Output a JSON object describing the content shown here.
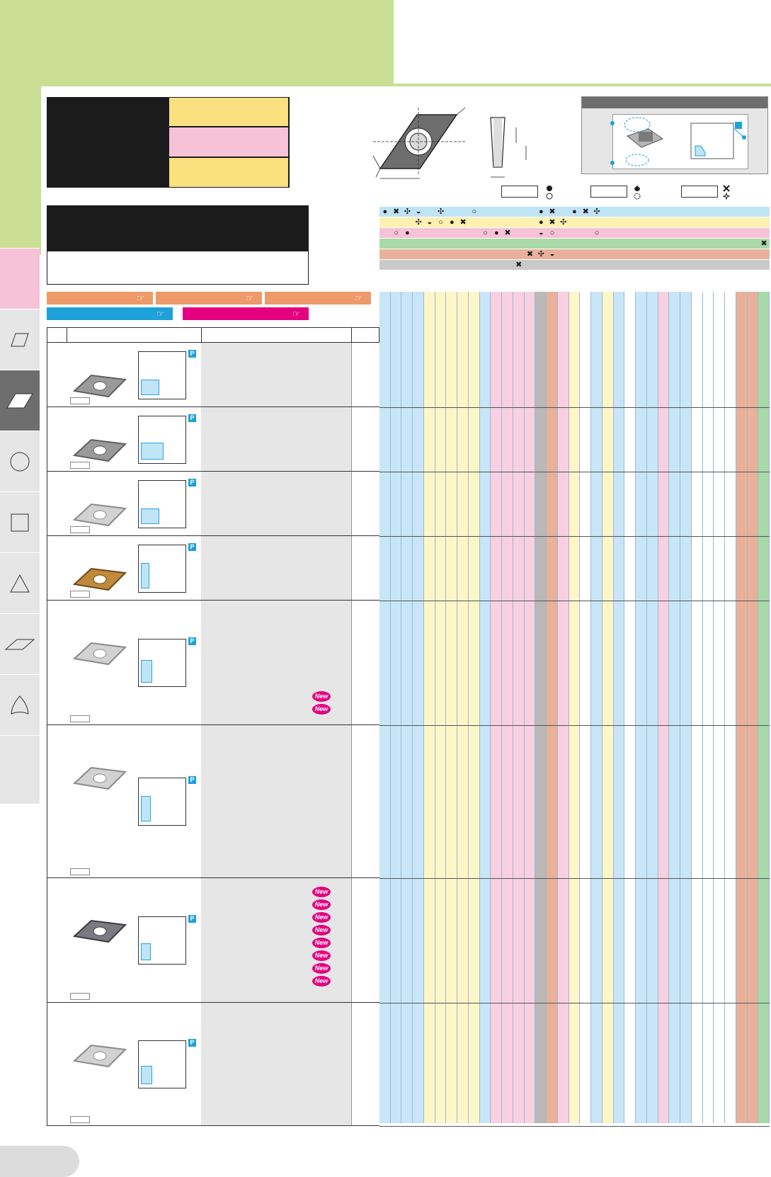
{
  "header": {
    "new_badge_text": "New",
    "p_badge_text": "P"
  },
  "colors": {
    "green": "#cadf94",
    "yellow": "#fbe080",
    "pink": "#f6c2d8",
    "blue": "#bfe4f5",
    "orange": "#ee9a6a",
    "cyan": "#1ea0d8",
    "magenta": "#e4007f"
  },
  "sidebar": {
    "tabs": [
      {
        "icon": "blank-tab-icon"
      },
      {
        "icon": "parallelogram-shape-icon"
      },
      {
        "icon": "rhombus-55-shape-icon"
      },
      {
        "icon": "circle-shape-icon"
      },
      {
        "icon": "square-shape-icon"
      },
      {
        "icon": "triangle-shape-icon"
      },
      {
        "icon": "rhombus-35-shape-icon"
      },
      {
        "icon": "trigon-shape-icon"
      }
    ]
  },
  "nav_pills": [
    {
      "color": "orange",
      "icon": "pointing-hand-icon"
    },
    {
      "color": "orange",
      "icon": "pointing-hand-icon"
    },
    {
      "color": "orange",
      "icon": "pointing-hand-icon"
    },
    {
      "color": "cyan",
      "icon": "pointing-hand-icon"
    },
    {
      "color": "magenta",
      "icon": "pointing-hand-icon"
    }
  ],
  "products": [
    {
      "image": "gray-rhombus-insert",
      "new_badges": 0
    },
    {
      "image": "gray-rhombus-insert",
      "new_badges": 0
    },
    {
      "image": "silver-rhombus-insert",
      "new_badges": 0
    },
    {
      "image": "gold-rhombus-insert",
      "new_badges": 0
    },
    {
      "image": "silver-rhombus-insert",
      "new_badges": 2
    },
    {
      "image": "silver-rhombus-insert",
      "new_badges": 0
    },
    {
      "image": "dark-rhombus-insert",
      "new_badges": 8
    },
    {
      "image": "silver-rhombus-insert",
      "new_badges": 0
    }
  ],
  "matrix_columns": [
    "blue",
    "blue",
    "blue",
    "blue",
    "yellow",
    "yellow",
    "yellow",
    "yellow",
    "yellow",
    "blue",
    "pink",
    "pink",
    "pink",
    "pink",
    "gray",
    "orange",
    "pink",
    "yellow",
    "white",
    "blue",
    "yellow",
    "blue",
    "white",
    "blue",
    "blue",
    "pink",
    "blue",
    "blue",
    "white",
    "white",
    "white",
    "white",
    "orange",
    "orange",
    "green"
  ],
  "legend_keys": [
    {
      "symbols": [
        "filled-circle-icon",
        "open-circle-icon"
      ]
    },
    {
      "symbols": [
        "half-circle-icon",
        "dashed-circle-icon"
      ]
    },
    {
      "symbols": [
        "cross-icon",
        "dashed-star-icon"
      ]
    }
  ]
}
